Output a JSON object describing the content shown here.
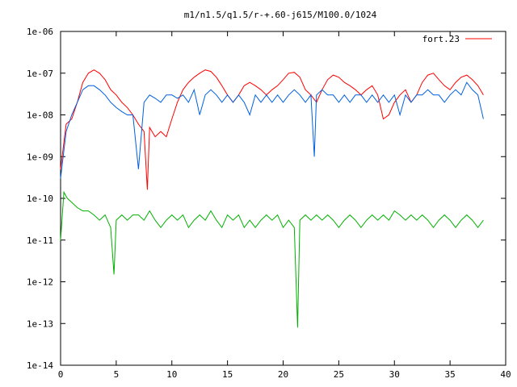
{
  "chart_data": {
    "type": "line",
    "title": "m1/n1.5/q1.5/r-+.60-j615/M100.0/1024",
    "xlabel": "",
    "ylabel": "",
    "xlim": [
      0,
      40
    ],
    "ylim": [
      1e-14,
      1e-06
    ],
    "yscale": "log",
    "x_ticks": [
      "0",
      "5",
      "10",
      "15",
      "20",
      "25",
      "30",
      "35",
      "40"
    ],
    "y_ticks": [
      "1e-14",
      "1e-13",
      "1e-12",
      "1e-11",
      "1e-10",
      "1e-09",
      "1e-08",
      "1e-07",
      "1e-06"
    ],
    "grid": false,
    "legend_position": "top-right",
    "series": [
      {
        "name": "fort.23",
        "color": "#ff0000",
        "x": [
          0,
          0.5,
          1,
          1.5,
          2,
          2.5,
          3,
          3.5,
          4,
          4.5,
          5,
          5.5,
          6,
          6.5,
          7,
          7.5,
          7.8,
          8,
          8.5,
          9,
          9.5,
          10,
          10.5,
          11,
          11.5,
          12,
          12.5,
          13,
          13.5,
          14,
          14.5,
          15,
          15.5,
          16,
          16.5,
          17,
          17.5,
          18,
          18.5,
          19,
          19.5,
          20,
          20.5,
          21,
          21.5,
          22,
          22.5,
          23,
          23.5,
          24,
          24.5,
          25,
          25.5,
          26,
          26.5,
          27,
          27.5,
          28,
          28.5,
          29,
          29.5,
          30,
          30.5,
          31,
          31.5,
          32,
          32.5,
          33,
          33.5,
          34,
          34.5,
          35,
          35.5,
          36,
          36.5,
          37,
          37.5,
          38
        ],
        "values": [
          5e-10,
          6e-09,
          8e-09,
          2e-08,
          6e-08,
          1e-07,
          1.2e-07,
          1e-07,
          7e-08,
          4e-08,
          3e-08,
          2e-08,
          1.5e-08,
          1e-08,
          6e-09,
          4e-09,
          1.6e-10,
          5e-09,
          3e-09,
          4e-09,
          3e-09,
          8e-09,
          2e-08,
          4e-08,
          6e-08,
          8e-08,
          1e-07,
          1.2e-07,
          1.1e-07,
          8e-08,
          5e-08,
          3e-08,
          2e-08,
          3e-08,
          5e-08,
          6e-08,
          5e-08,
          4e-08,
          3e-08,
          4e-08,
          5e-08,
          7e-08,
          1e-07,
          1.05e-07,
          8e-08,
          4e-08,
          3e-08,
          2e-08,
          4e-08,
          7e-08,
          9e-08,
          8e-08,
          6e-08,
          5e-08,
          4e-08,
          3e-08,
          4e-08,
          5e-08,
          3e-08,
          8e-09,
          1e-08,
          2e-08,
          3e-08,
          4e-08,
          2e-08,
          3e-08,
          6e-08,
          9e-08,
          1e-07,
          7e-08,
          5e-08,
          4e-08,
          6e-08,
          8e-08,
          9e-08,
          7e-08,
          5e-08,
          3e-08
        ]
      },
      {
        "name": "",
        "color": "#0060e0",
        "x": [
          0,
          0.5,
          1,
          1.5,
          2,
          2.5,
          3,
          3.5,
          4,
          4.5,
          5,
          5.5,
          6,
          6.5,
          7,
          7.5,
          8,
          8.5,
          9,
          9.5,
          10,
          10.5,
          11,
          11.5,
          12,
          12.5,
          13,
          13.5,
          14,
          14.5,
          15,
          15.5,
          16,
          16.5,
          17,
          17.5,
          18,
          18.5,
          19,
          19.5,
          20,
          20.5,
          21,
          21.5,
          22,
          22.5,
          22.8,
          23,
          23.5,
          24,
          24.5,
          25,
          25.5,
          26,
          26.5,
          27,
          27.5,
          28,
          28.5,
          29,
          29.5,
          30,
          30.5,
          31,
          31.5,
          32,
          32.5,
          33,
          33.5,
          34,
          34.5,
          35,
          35.5,
          36,
          36.5,
          37,
          37.5,
          38
        ],
        "values": [
          3e-10,
          4e-09,
          1e-08,
          2e-08,
          4e-08,
          5e-08,
          5e-08,
          4e-08,
          3e-08,
          2e-08,
          1.5e-08,
          1.2e-08,
          1e-08,
          1e-08,
          5e-10,
          2e-08,
          3e-08,
          2.5e-08,
          2e-08,
          3e-08,
          3e-08,
          2.5e-08,
          3e-08,
          2e-08,
          4e-08,
          1e-08,
          3e-08,
          4e-08,
          3e-08,
          2e-08,
          3e-08,
          2e-08,
          3e-08,
          2e-08,
          1e-08,
          3e-08,
          2e-08,
          3e-08,
          2e-08,
          3e-08,
          2e-08,
          3e-08,
          4e-08,
          3e-08,
          2e-08,
          3e-08,
          1e-09,
          3e-08,
          4e-08,
          3e-08,
          3e-08,
          2e-08,
          3e-08,
          2e-08,
          3e-08,
          3e-08,
          2e-08,
          3e-08,
          2e-08,
          3e-08,
          2e-08,
          3e-08,
          1e-08,
          3e-08,
          2e-08,
          3e-08,
          3e-08,
          4e-08,
          3e-08,
          3e-08,
          2e-08,
          3e-08,
          4e-08,
          3e-08,
          6e-08,
          4e-08,
          3e-08,
          8e-09
        ]
      },
      {
        "name": "",
        "color": "#00b000",
        "x": [
          0,
          0.3,
          0.6,
          1,
          1.5,
          2,
          2.5,
          3,
          3.5,
          4,
          4.5,
          4.8,
          5,
          5.5,
          6,
          6.5,
          7,
          7.5,
          8,
          8.5,
          9,
          9.5,
          10,
          10.5,
          11,
          11.5,
          12,
          12.5,
          13,
          13.5,
          14,
          14.5,
          15,
          15.5,
          16,
          16.5,
          17,
          17.5,
          18,
          18.5,
          19,
          19.5,
          20,
          20.5,
          21,
          21.3,
          21.5,
          22,
          22.5,
          23,
          23.5,
          24,
          24.5,
          25,
          25.5,
          26,
          26.5,
          27,
          27.5,
          28,
          28.5,
          29,
          29.5,
          30,
          30.5,
          31,
          31.5,
          32,
          32.5,
          33,
          33.5,
          34,
          34.5,
          35,
          35.5,
          36,
          36.5,
          37,
          37.5,
          38
        ],
        "values": [
          1e-11,
          1.4e-10,
          1e-10,
          8e-11,
          6e-11,
          5e-11,
          5e-11,
          4e-11,
          3e-11,
          4e-11,
          2e-11,
          1.5e-12,
          3e-11,
          4e-11,
          3e-11,
          4e-11,
          4e-11,
          3e-11,
          5e-11,
          3e-11,
          2e-11,
          3e-11,
          4e-11,
          3e-11,
          4e-11,
          2e-11,
          3e-11,
          4e-11,
          3e-11,
          5e-11,
          3e-11,
          2e-11,
          4e-11,
          3e-11,
          4e-11,
          2e-11,
          3e-11,
          2e-11,
          3e-11,
          4e-11,
          3e-11,
          4e-11,
          2e-11,
          3e-11,
          2e-11,
          8e-14,
          3e-11,
          4e-11,
          3e-11,
          4e-11,
          3e-11,
          4e-11,
          3e-11,
          2e-11,
          3e-11,
          4e-11,
          3e-11,
          2e-11,
          3e-11,
          4e-11,
          3e-11,
          4e-11,
          3e-11,
          5e-11,
          4e-11,
          3e-11,
          4e-11,
          3e-11,
          4e-11,
          3e-11,
          2e-11,
          3e-11,
          4e-11,
          3e-11,
          2e-11,
          3e-11,
          4e-11,
          3e-11,
          2e-11,
          3e-11
        ]
      }
    ]
  }
}
